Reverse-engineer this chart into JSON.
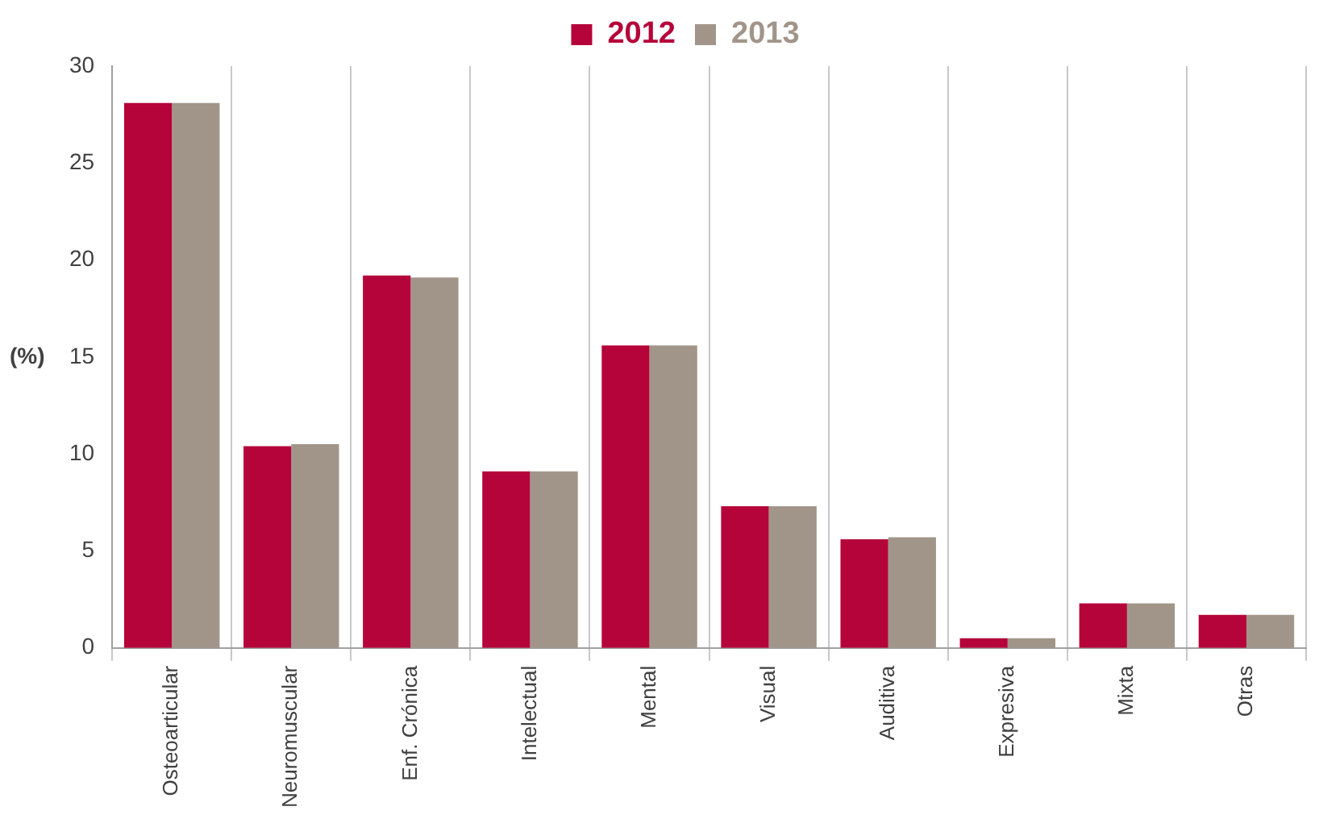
{
  "chart_data": {
    "type": "bar",
    "ylabel": "(%)",
    "categories": [
      "Osteoarticular",
      "Neuromuscular",
      "Enf. Crónica",
      "Intelectual",
      "Mental",
      "Visual",
      "Auditiva",
      "Expresiva",
      "Mixta",
      "Otras"
    ],
    "series": [
      {
        "name": "2012",
        "color": "#b5043a",
        "values": [
          28.1,
          10.4,
          19.2,
          9.1,
          15.6,
          7.3,
          5.6,
          0.5,
          2.3,
          1.7
        ]
      },
      {
        "name": "2013",
        "color": "#a19589",
        "values": [
          28.1,
          10.5,
          19.1,
          9.1,
          15.6,
          7.3,
          5.7,
          0.5,
          2.3,
          1.7
        ]
      }
    ],
    "ylim": [
      0,
      30
    ],
    "yticks": [
      0,
      5,
      10,
      15,
      20,
      25,
      30
    ],
    "grid": "x",
    "legend": "top"
  }
}
